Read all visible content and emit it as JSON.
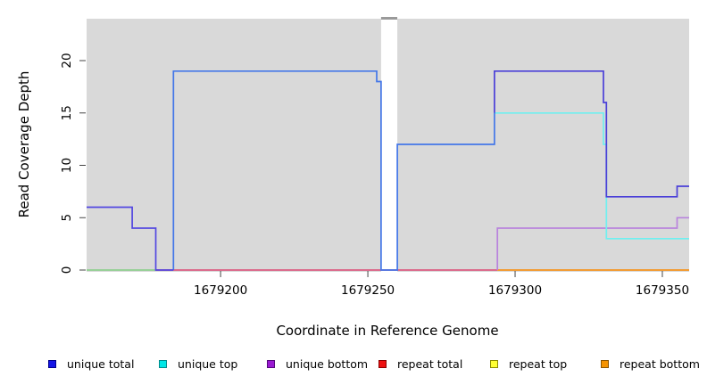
{
  "figure": {
    "xlabel": "Coordinate in Reference Genome",
    "ylabel": "Read Coverage Depth"
  },
  "chart_data": {
    "type": "line",
    "title": "",
    "xlabel": "Coordinate in Reference Genome",
    "ylabel": "Read Coverage Depth",
    "xlim": [
      1679154.5,
      1679359.1
    ],
    "ylim": [
      0,
      24
    ],
    "x_ticks": [
      1679200,
      1679250,
      1679300,
      1679350
    ],
    "y_ticks": [
      0,
      5,
      10,
      15,
      20
    ],
    "grid": false,
    "plot_bg": "#d9d9d9",
    "tick_color": "#444444",
    "gap_region": {
      "from": 1679254.5,
      "to": 1679260,
      "fill": "#ffffff",
      "cap_color": "#9a9a9a"
    },
    "lines": [
      {
        "name": "unique-top-zero-overlap-line",
        "color": "#8fcf8f",
        "points": [
          [
            1679154.5,
            0
          ],
          [
            1679179,
            0
          ]
        ]
      },
      {
        "name": "repeat-total-zero-line",
        "color": "#db5c80",
        "points": [
          [
            1679178,
            0
          ],
          [
            1679294,
            0
          ]
        ]
      },
      {
        "name": "repeat-bottom-zero-line",
        "color": "#f5931d",
        "points": [
          [
            1679294,
            0
          ],
          [
            1679359.1,
            0
          ]
        ]
      },
      {
        "name": "unique-bottom-line",
        "color": "#b983dd",
        "points": [
          [
            1679294,
            0
          ],
          [
            1679294,
            4
          ],
          [
            1679355,
            4
          ],
          [
            1679355,
            5
          ],
          [
            1679359.1,
            5
          ]
        ]
      },
      {
        "name": "unique-top-line",
        "color": "#6ff0f0",
        "points": [
          [
            1679293,
            15
          ],
          [
            1679330,
            15
          ],
          [
            1679330,
            12
          ],
          [
            1679331,
            12
          ],
          [
            1679331,
            3
          ],
          [
            1679359.1,
            3
          ]
        ]
      },
      {
        "name": "unique-total-top-overlap-line",
        "color": "#4477e8",
        "points": [
          [
            1679184,
            0
          ],
          [
            1679184,
            19
          ],
          [
            1679253,
            19
          ],
          [
            1679253,
            18
          ],
          [
            1679254.5,
            18
          ],
          [
            1679254.5,
            0
          ],
          [
            1679260,
            0
          ],
          [
            1679260,
            12
          ],
          [
            1679293,
            12
          ],
          [
            1679293,
            15
          ]
        ]
      },
      {
        "name": "unique-total-line-left",
        "color": "#5348e0",
        "points": [
          [
            1679154.5,
            6
          ],
          [
            1679170,
            6
          ],
          [
            1679170,
            4
          ],
          [
            1679178,
            4
          ],
          [
            1679178,
            0
          ],
          [
            1679184,
            0
          ]
        ]
      },
      {
        "name": "unique-total-line-right",
        "color": "#4a3fd8",
        "points": [
          [
            1679293,
            15
          ],
          [
            1679293,
            19
          ],
          [
            1679330,
            19
          ],
          [
            1679330,
            16
          ],
          [
            1679331,
            16
          ],
          [
            1679331,
            7
          ],
          [
            1679355,
            7
          ],
          [
            1679355,
            8
          ],
          [
            1679359.1,
            8
          ]
        ]
      }
    ],
    "legend": {
      "position": "bottom",
      "items": [
        {
          "label": "unique total",
          "fill": "#1414e6",
          "border": "#00008b"
        },
        {
          "label": "unique top",
          "fill": "#00e6e6",
          "border": "#008b8b"
        },
        {
          "label": "unique bottom",
          "fill": "#9a1ad2",
          "border": "#55087c"
        },
        {
          "label": "repeat total",
          "fill": "#ee1111",
          "border": "#8b0000"
        },
        {
          "label": "repeat top",
          "fill": "#ffff33",
          "border": "#8b8b00"
        },
        {
          "label": "repeat bottom",
          "fill": "#f59300",
          "border": "#8b5400"
        }
      ]
    }
  }
}
